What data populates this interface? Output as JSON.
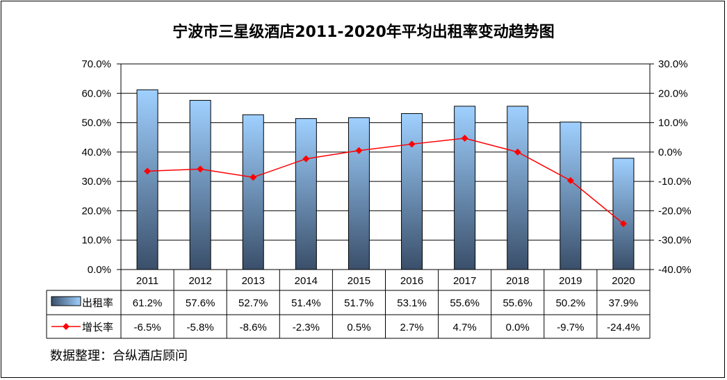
{
  "title": "宁波市三星级酒店2011-2020年平均出租率变动趋势图",
  "source": "数据整理：合纵酒店顾问",
  "chart_data": {
    "type": "bar",
    "categories": [
      "2011",
      "2012",
      "2013",
      "2014",
      "2015",
      "2016",
      "2017",
      "2018",
      "2019",
      "2020"
    ],
    "series": [
      {
        "name": "出租率",
        "type": "bar",
        "axis": "left",
        "values": [
          61.2,
          57.6,
          52.7,
          51.4,
          51.7,
          53.1,
          55.6,
          55.6,
          50.2,
          37.9
        ],
        "labels": [
          "61.2%",
          "57.6%",
          "52.7%",
          "51.4%",
          "51.7%",
          "53.1%",
          "55.6%",
          "55.6%",
          "50.2%",
          "37.9%"
        ]
      },
      {
        "name": "增长率",
        "type": "line",
        "axis": "right",
        "values": [
          -6.5,
          -5.8,
          -8.6,
          -2.3,
          0.5,
          2.7,
          4.7,
          0.0,
          -9.7,
          -24.4
        ],
        "labels": [
          "-6.5%",
          "-5.8%",
          "-8.6%",
          "-2.3%",
          "0.5%",
          "2.7%",
          "4.7%",
          "0.0%",
          "-9.7%",
          "-24.4%"
        ]
      }
    ],
    "y_left": {
      "lim": [
        0,
        70
      ],
      "ticks": [
        "0.0%",
        "10.0%",
        "20.0%",
        "30.0%",
        "40.0%",
        "50.0%",
        "60.0%",
        "70.0%"
      ]
    },
    "y_right": {
      "lim": [
        -40,
        30
      ],
      "ticks": [
        "-40.0%",
        "-30.0%",
        "-20.0%",
        "-10.0%",
        "0.0%",
        "10.0%",
        "20.0%",
        "30.0%"
      ]
    },
    "grid": true,
    "legend": "data-table",
    "colors": {
      "bar_top": "#9fd0ff",
      "bar_bottom": "#3a4f6a",
      "line": "#ff0000"
    }
  }
}
